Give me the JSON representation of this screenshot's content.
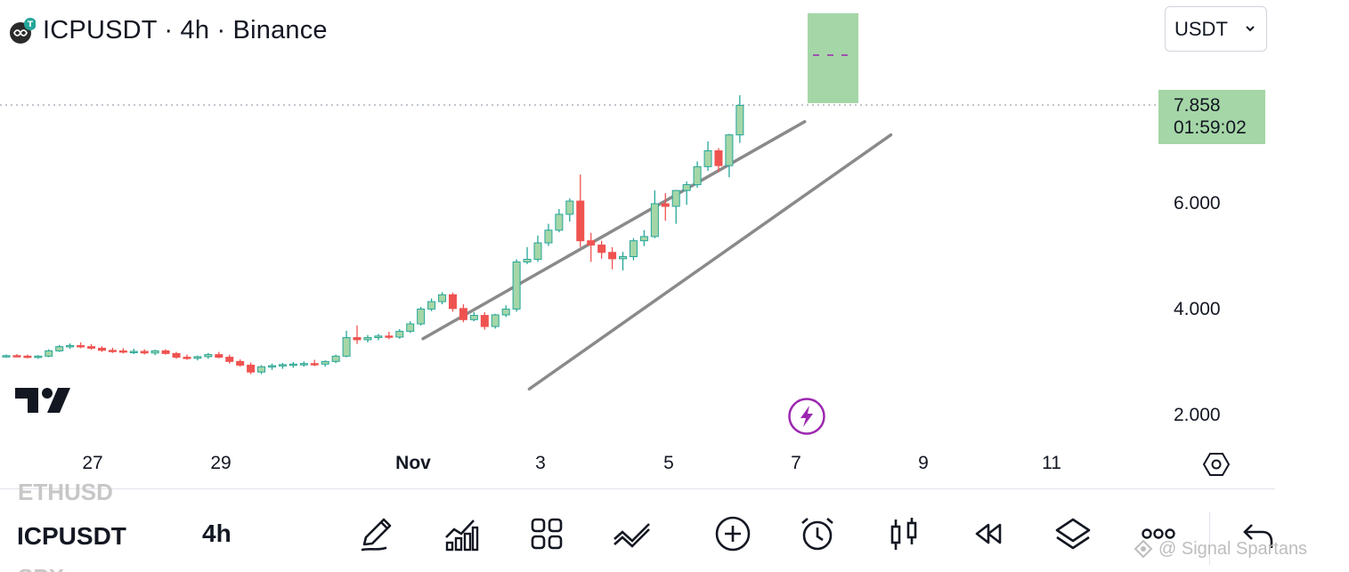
{
  "header": {
    "title": "ICPUSDT · 4h · Binance"
  },
  "currency_select": {
    "value": "USDT"
  },
  "price_tag": {
    "price": "7.858",
    "countdown": "01:59:02"
  },
  "y_axis": {
    "labels": [
      "6.000",
      "4.000",
      "2.000"
    ]
  },
  "x_axis": {
    "labels": [
      "27",
      "29",
      "Nov",
      "3",
      "5",
      "7",
      "9",
      "11"
    ]
  },
  "bottom_bar": {
    "symbol_prev": "ETHUSD",
    "symbol_current": "ICPUSDT",
    "symbol_next": "SPX",
    "interval": "4h",
    "tools": [
      "pencil-icon",
      "indicators-icon",
      "layouts-icon",
      "drawing-tools-icon",
      "add-icon",
      "alert-clock-icon",
      "chart-type-icon",
      "replay-icon",
      "layers-icon",
      "more-icon",
      "undo-icon"
    ]
  },
  "watermark": {
    "text": "@ Signal Spartans"
  },
  "colors": {
    "up": "#a5d6a7",
    "up_border": "#26a69a",
    "down": "#ef5350",
    "channel": "#8a8a8a",
    "target": "#a5d6a7",
    "accent": "#9c27b0"
  },
  "chart_data": {
    "type": "candlestick",
    "symbol": "ICPUSDT",
    "interval": "4h",
    "exchange": "Binance",
    "y_range": [
      1.8,
      8.6
    ],
    "x_labels": [
      "27",
      "29",
      "Nov",
      "3",
      "5",
      "7",
      "9",
      "11"
    ],
    "last_price": 7.858,
    "candles": [
      [
        3.12,
        3.15,
        3.09,
        3.13
      ],
      [
        3.13,
        3.16,
        3.1,
        3.12
      ],
      [
        3.12,
        3.15,
        3.08,
        3.1
      ],
      [
        3.1,
        3.14,
        3.07,
        3.12
      ],
      [
        3.12,
        3.25,
        3.1,
        3.22
      ],
      [
        3.22,
        3.33,
        3.2,
        3.3
      ],
      [
        3.3,
        3.36,
        3.26,
        3.32
      ],
      [
        3.32,
        3.38,
        3.27,
        3.3
      ],
      [
        3.3,
        3.35,
        3.24,
        3.27
      ],
      [
        3.27,
        3.31,
        3.2,
        3.23
      ],
      [
        3.23,
        3.28,
        3.18,
        3.22
      ],
      [
        3.22,
        3.27,
        3.17,
        3.2
      ],
      [
        3.2,
        3.26,
        3.16,
        3.21
      ],
      [
        3.21,
        3.25,
        3.15,
        3.18
      ],
      [
        3.18,
        3.24,
        3.14,
        3.22
      ],
      [
        3.22,
        3.25,
        3.15,
        3.17
      ],
      [
        3.17,
        3.2,
        3.07,
        3.1
      ],
      [
        3.1,
        3.15,
        3.05,
        3.08
      ],
      [
        3.08,
        3.13,
        3.04,
        3.11
      ],
      [
        3.11,
        3.18,
        3.07,
        3.15
      ],
      [
        3.15,
        3.2,
        3.08,
        3.1
      ],
      [
        3.1,
        3.15,
        2.98,
        3.02
      ],
      [
        3.02,
        3.06,
        2.92,
        2.95
      ],
      [
        2.95,
        3.0,
        2.78,
        2.82
      ],
      [
        2.82,
        2.95,
        2.78,
        2.92
      ],
      [
        2.92,
        2.98,
        2.86,
        2.94
      ],
      [
        2.94,
        2.99,
        2.88,
        2.96
      ],
      [
        2.96,
        3.01,
        2.9,
        2.97
      ],
      [
        2.97,
        3.02,
        2.92,
        2.98
      ],
      [
        2.98,
        3.05,
        2.93,
        2.97
      ],
      [
        2.97,
        3.04,
        2.92,
        3.02
      ],
      [
        3.02,
        3.15,
        2.99,
        3.12
      ],
      [
        3.12,
        3.6,
        3.1,
        3.47
      ],
      [
        3.47,
        3.7,
        3.35,
        3.43
      ],
      [
        3.43,
        3.52,
        3.38,
        3.47
      ],
      [
        3.47,
        3.54,
        3.42,
        3.5
      ],
      [
        3.5,
        3.58,
        3.44,
        3.48
      ],
      [
        3.48,
        3.63,
        3.45,
        3.59
      ],
      [
        3.59,
        3.78,
        3.56,
        3.73
      ],
      [
        3.73,
        4.05,
        3.7,
        4.01
      ],
      [
        4.01,
        4.21,
        3.97,
        4.15
      ],
      [
        4.15,
        4.33,
        4.1,
        4.28
      ],
      [
        4.28,
        4.32,
        3.96,
        4.02
      ],
      [
        4.02,
        4.1,
        3.76,
        3.81
      ],
      [
        3.81,
        3.95,
        3.78,
        3.89
      ],
      [
        3.89,
        3.95,
        3.62,
        3.68
      ],
      [
        3.68,
        3.92,
        3.64,
        3.9
      ],
      [
        3.9,
        4.08,
        3.86,
        4.01
      ],
      [
        4.01,
        4.95,
        3.96,
        4.9
      ],
      [
        4.9,
        5.18,
        4.86,
        4.95
      ],
      [
        4.95,
        5.4,
        4.9,
        5.26
      ],
      [
        5.26,
        5.62,
        5.2,
        5.5
      ],
      [
        5.5,
        5.9,
        5.46,
        5.8
      ],
      [
        5.8,
        6.1,
        5.66,
        6.05
      ],
      [
        6.05,
        6.55,
        5.18,
        5.3
      ],
      [
        5.3,
        5.45,
        4.9,
        5.22
      ],
      [
        5.22,
        5.3,
        4.96,
        5.08
      ],
      [
        5.08,
        5.18,
        4.76,
        4.96
      ],
      [
        4.96,
        5.09,
        4.74,
        5.0
      ],
      [
        5.0,
        5.35,
        4.93,
        5.3
      ],
      [
        5.3,
        5.5,
        5.2,
        5.38
      ],
      [
        5.38,
        6.25,
        5.35,
        6.0
      ],
      [
        6.0,
        6.2,
        5.68,
        5.95
      ],
      [
        5.95,
        6.2,
        5.62,
        6.25
      ],
      [
        6.25,
        6.42,
        5.98,
        6.36
      ],
      [
        6.36,
        6.8,
        6.3,
        6.7
      ],
      [
        6.7,
        7.18,
        6.62,
        7.0
      ],
      [
        7.0,
        7.05,
        6.6,
        6.72
      ],
      [
        6.72,
        7.32,
        6.5,
        7.3
      ],
      [
        7.3,
        8.05,
        7.15,
        7.858
      ]
    ],
    "channel_upper": [
      [
        3.45,
        70
      ],
      [
        7.55,
        32
      ]
    ],
    "channel_lower": [
      [
        2.5,
        4
      ],
      [
        7.3,
        52
      ]
    ],
    "target_zone": {
      "from_price": 7.9,
      "to_price": 9.6,
      "mid_price": 8.75
    }
  }
}
